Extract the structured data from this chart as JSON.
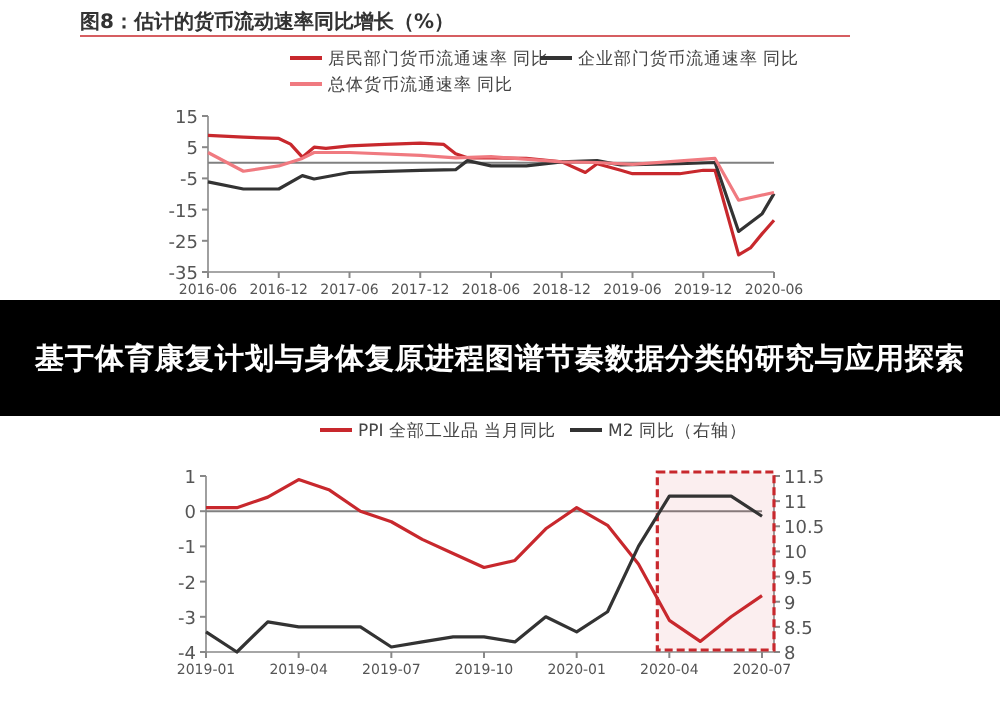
{
  "chart_data": [
    {
      "type": "line",
      "title": "图8：估计的货币流动速率同比增长（%）",
      "legend": "top",
      "grid": false,
      "xlim": [
        "2016-06",
        "2020-06"
      ],
      "xticks": [
        "2016-06",
        "2016-12",
        "2017-06",
        "2017-12",
        "2018-06",
        "2018-12",
        "2019-06",
        "2019-12",
        "2020-06"
      ],
      "ylim": [
        -35,
        15
      ],
      "yticks": [
        -35,
        -25,
        -15,
        -5,
        5,
        15
      ],
      "ref_lines": [
        {
          "axis": "y",
          "value": 0,
          "color": "#808080"
        }
      ],
      "series": [
        {
          "name": "居民部门货币流通速率 同比",
          "color": "#c8282d",
          "x": [
            "2016-06",
            "2016-09",
            "2016-12",
            "2017-01",
            "2017-02",
            "2017-03",
            "2017-04",
            "2017-06",
            "2017-09",
            "2017-12",
            "2018-02",
            "2018-03",
            "2018-04",
            "2018-06",
            "2018-09",
            "2018-12",
            "2019-02",
            "2019-03",
            "2019-05",
            "2019-06",
            "2019-10",
            "2019-12",
            "2020-01",
            "2020-03",
            "2020-04",
            "2020-05",
            "2020-06"
          ],
          "values": [
            8.8,
            8.2,
            7.8,
            6,
            1.8,
            5,
            4.6,
            5.4,
            5.9,
            6.3,
            5.9,
            2.9,
            1.6,
            1.6,
            1.4,
            0.3,
            -3.1,
            -0.3,
            -2.4,
            -3.5,
            -3.5,
            -2.4,
            -2.4,
            -29.5,
            -27.3,
            -22.7,
            -18.4
          ]
        },
        {
          "name": "企业部门货币流通速率 同比",
          "color": "#333333",
          "x": [
            "2016-06",
            "2016-09",
            "2016-12",
            "2017-02",
            "2017-03",
            "2017-06",
            "2017-12",
            "2018-03",
            "2018-04",
            "2018-06",
            "2018-09",
            "2018-12",
            "2019-03",
            "2019-05",
            "2019-10",
            "2020-01",
            "2020-03",
            "2020-05",
            "2020-06"
          ],
          "values": [
            -6.1,
            -8.4,
            -8.4,
            -4.1,
            -5.2,
            -3.1,
            -2.4,
            -2.2,
            0.7,
            -1,
            -1,
            0.3,
            0.7,
            -0.7,
            -0.3,
            0.1,
            -22,
            -16.3,
            -9.9
          ]
        },
        {
          "name": "总体货币流通速率 同比",
          "color": "#f07a80",
          "x": [
            "2016-06",
            "2016-09",
            "2016-12",
            "2017-02",
            "2017-03",
            "2017-06",
            "2017-12",
            "2018-03",
            "2018-06",
            "2018-12",
            "2019-03",
            "2019-06",
            "2020-01",
            "2020-03",
            "2020-06"
          ],
          "values": [
            3.3,
            -2.7,
            -1,
            1.4,
            3.3,
            3.3,
            2.4,
            1.6,
            2,
            0.3,
            0.1,
            -0.5,
            1.4,
            -12,
            -9.5
          ]
        }
      ]
    },
    {
      "type": "other",
      "title": "基于体育康复计划与身体复原进程图谱节奏数据分类的研究与应用探索"
    },
    {
      "type": "line",
      "legend": "top",
      "grid": false,
      "categories": [
        "2019-01",
        null,
        null,
        "2019-04",
        null,
        null,
        "2019-07",
        null,
        null,
        "2019-10",
        null,
        null,
        "2020-01",
        null,
        null,
        "2020-04",
        null,
        null,
        "2020-07"
      ],
      "ylim": [
        -4,
        1
      ],
      "yticks": [
        -4,
        -3,
        -2,
        -1,
        0,
        1
      ],
      "y2lim": [
        8,
        11.5
      ],
      "y2ticks": [
        8,
        8.5,
        9,
        9.5,
        10,
        10.5,
        11,
        11.5
      ],
      "ref_lines": [
        {
          "axis": "y",
          "value": 0,
          "color": "#808080"
        }
      ],
      "bands": [
        {
          "axis": "x",
          "from": "2020-04",
          "to": "2020-07",
          "color": "#c8282d"
        }
      ],
      "series": [
        {
          "name": "PPI 全部工业品 当月同比",
          "color": "#c8282d",
          "values": [
            0.1,
            0.1,
            0.4,
            0.9,
            0.6,
            0,
            -0.3,
            -0.8,
            -1.2,
            -1.6,
            -1.4,
            -0.5,
            0.1,
            -0.4,
            -1.5,
            -3.1,
            -3.7,
            -3.0,
            -2.4
          ]
        },
        {
          "name": "M2 同比（右轴）",
          "color": "#333333",
          "axis": "y2",
          "values": [
            8.4,
            8.0,
            8.6,
            8.5,
            8.5,
            8.5,
            8.1,
            8.2,
            8.3,
            8.3,
            8.2,
            8.7,
            8.4,
            8.8,
            10.1,
            11.1,
            11.1,
            11.1,
            10.7
          ]
        }
      ]
    }
  ]
}
